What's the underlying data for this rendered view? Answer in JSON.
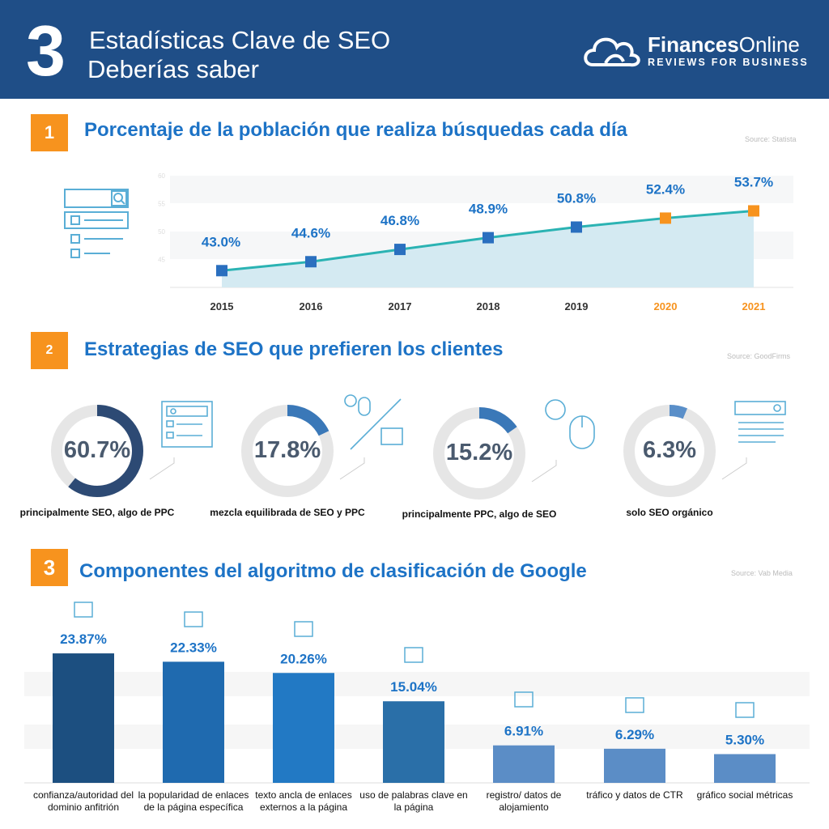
{
  "header": {
    "number": "3",
    "title_line1": "Estadísticas Clave de SEO",
    "title_line2": "Deberías saber",
    "logo_name_bold": "Finances",
    "logo_name": "Online",
    "logo_tagline": "REVIEWS FOR BUSINESS"
  },
  "sections": [
    {
      "number": "1",
      "title": "Porcentaje de la población que realiza búsquedas cada día",
      "source": "Source: Statista"
    },
    {
      "number": "2",
      "title": "Estrategias de SEO que prefieren los clientes",
      "source": "Source: GoodFirms"
    },
    {
      "number": "3",
      "title": "Componentes del algoritmo de clasificación de Google",
      "source": "Source: Vab Media"
    }
  ],
  "colors": {
    "header": "#1f4e87",
    "accent_orange": "#f7931e",
    "title_blue": "#1d73c6",
    "line": "#2bb3b3",
    "marker": "#2a6fbf",
    "donut_dark": "#2d4a74",
    "donut_mid": "#3a78b8",
    "donut_track": "#e6e6e6"
  },
  "chart_data": [
    {
      "type": "line",
      "x": [
        "2015",
        "2016",
        "2017",
        "2018",
        "2019",
        "2020",
        "2021"
      ],
      "values": [
        43.0,
        44.6,
        46.8,
        48.9,
        50.8,
        52.4,
        53.7
      ],
      "data_labels": [
        "43.0%",
        "44.6%",
        "46.8%",
        "48.9%",
        "50.8%",
        "52.4%",
        "53.7%"
      ],
      "projected": [
        false,
        false,
        false,
        false,
        false,
        true,
        true
      ],
      "yticks": [
        "60",
        "55",
        "50",
        "45"
      ],
      "ylim": [
        40,
        60
      ],
      "grid": true
    },
    {
      "type": "pie",
      "style": "donut",
      "categories": [
        "principalmente SEO, algo de PPC",
        "mezcla equilibrada de SEO y PPC",
        "principalmente PPC, algo de SEO",
        "solo SEO orgánico"
      ],
      "values": [
        60.7,
        17.8,
        15.2,
        6.3
      ],
      "data_labels": [
        "60.7%",
        "17.8%",
        "15.2%",
        "6.3%"
      ]
    },
    {
      "type": "bar",
      "categories": [
        "confianza/autoridad del dominio anfitrión",
        "la popularidad de enlaces de la página específica",
        "texto ancla de enlaces externos a la página",
        "uso de palabras clave en la página",
        "registro/ datos de alojamiento",
        "tráfico y datos de CTR",
        "gráfico social métricas"
      ],
      "values": [
        23.87,
        22.33,
        20.26,
        15.04,
        6.91,
        6.29,
        5.3
      ],
      "data_labels": [
        "23.87%",
        "22.33%",
        "20.26%",
        "15.04%",
        "6.91%",
        "6.29%",
        "5.30%"
      ],
      "icons": [
        "browser-icon",
        "link-icon",
        "anchor-icon",
        "key-icon",
        "database-icon",
        "bar-chart-icon",
        "network-icon"
      ]
    }
  ]
}
